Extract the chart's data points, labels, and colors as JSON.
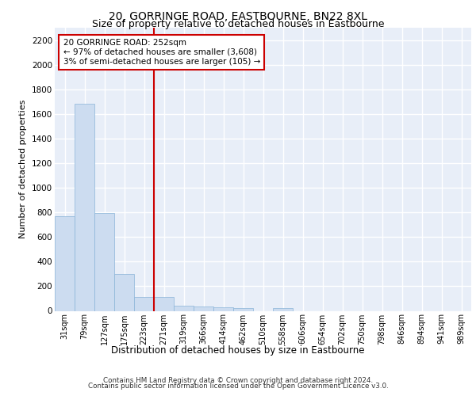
{
  "title": "20, GORRINGE ROAD, EASTBOURNE, BN22 8XL",
  "subtitle": "Size of property relative to detached houses in Eastbourne",
  "xlabel": "Distribution of detached houses by size in Eastbourne",
  "ylabel": "Number of detached properties",
  "bar_color": "#ccdcf0",
  "bar_edge_color": "#8ab4d8",
  "background_color": "#e8eef8",
  "grid_color": "#ffffff",
  "vline_color": "#cc0000",
  "annotation_text": "20 GORRINGE ROAD: 252sqm\n← 97% of detached houses are smaller (3,608)\n3% of semi-detached houses are larger (105) →",
  "annotation_box_color": "#ffffff",
  "annotation_border_color": "#cc0000",
  "categories": [
    "31sqm",
    "79sqm",
    "127sqm",
    "175sqm",
    "223sqm",
    "271sqm",
    "319sqm",
    "366sqm",
    "414sqm",
    "462sqm",
    "510sqm",
    "558sqm",
    "606sqm",
    "654sqm",
    "702sqm",
    "750sqm",
    "798sqm",
    "846sqm",
    "894sqm",
    "941sqm",
    "989sqm"
  ],
  "values": [
    770,
    1680,
    795,
    300,
    110,
    110,
    45,
    35,
    30,
    25,
    0,
    20,
    0,
    0,
    0,
    0,
    0,
    0,
    0,
    0,
    0
  ],
  "ylim": [
    0,
    2300
  ],
  "yticks": [
    0,
    200,
    400,
    600,
    800,
    1000,
    1200,
    1400,
    1600,
    1800,
    2000,
    2200
  ],
  "footer_line1": "Contains HM Land Registry data © Crown copyright and database right 2024.",
  "footer_line2": "Contains public sector information licensed under the Open Government Licence v3.0."
}
